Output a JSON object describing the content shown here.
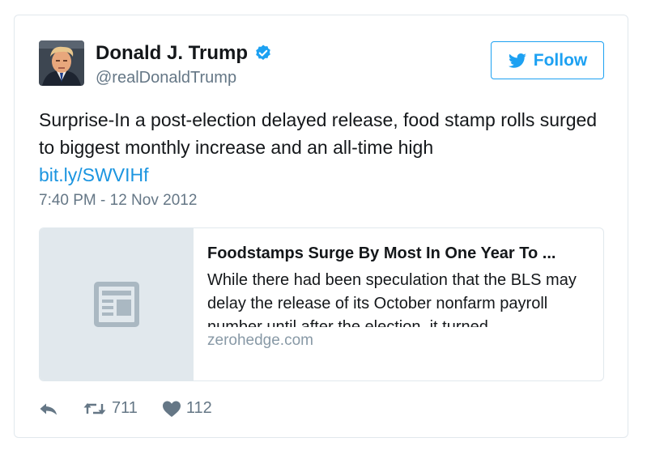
{
  "author": {
    "name": "Donald J. Trump",
    "handle": "@realDonaldTrump",
    "avatar_icon": "profile-photo",
    "verified_icon": "verified-badge-icon"
  },
  "follow_button": {
    "label": "Follow",
    "icon": "twitter-bird-icon"
  },
  "tweet": {
    "text": "Surprise-In a post-election delayed release, food stamp rolls surged to biggest monthly increase and an all-time high",
    "link": "bit.ly/SWVIHf",
    "timestamp": "7:40 PM - 12 Nov 2012"
  },
  "card": {
    "thumbnail_icon": "article-icon",
    "title": "Foodstamps Surge By Most In One Year To ...",
    "description": "While there had been speculation that the BLS may delay the release of its October nonfarm payroll number until after the election, it turned",
    "domain": "zerohedge.com"
  },
  "actions": {
    "reply_icon": "reply-icon",
    "retweet_icon": "retweet-icon",
    "retweet_count": "711",
    "like_icon": "heart-icon",
    "like_count": "112"
  },
  "colors": {
    "accent": "#1da1f2",
    "link": "#1b95e0",
    "secondary_text": "#657786",
    "border": "#e1e8ed"
  }
}
